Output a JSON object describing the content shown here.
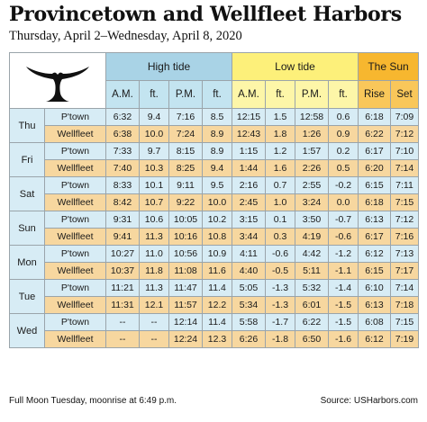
{
  "title": "Provincetown and Wellfleet Harbors",
  "subtitle": "Thursday, April 2–Wednesday, April 8, 2020",
  "logo_icon": "whale-tail-icon",
  "headers": {
    "high_tide": "High tide",
    "low_tide": "Low tide",
    "sun": "The Sun",
    "sub": [
      "A.M.",
      "ft.",
      "P.M.",
      "ft.",
      "A.M.",
      "ft.",
      "P.M.",
      "ft.",
      "Rise",
      "Set"
    ]
  },
  "colors": {
    "high_tide": "#a9d3e6",
    "low_tide": "#fdf07a",
    "sun": "#f7b72f",
    "ptown_row": "#d7ecf5",
    "wellfleet_row": "#f7d79f"
  },
  "days": [
    {
      "day": "Thu",
      "rows": [
        {
          "loc": "P'town",
          "values": [
            "6:32",
            "9.4",
            "7:16",
            "8.5",
            "12:15",
            "1.5",
            "12:58",
            "0.6",
            "6:18",
            "7:09"
          ]
        },
        {
          "loc": "Wellfleet",
          "values": [
            "6:38",
            "10.0",
            "7:24",
            "8.9",
            "12:43",
            "1.8",
            "1:26",
            "0.9",
            "6:22",
            "7:12"
          ]
        }
      ]
    },
    {
      "day": "Fri",
      "rows": [
        {
          "loc": "P'town",
          "values": [
            "7:33",
            "9.7",
            "8:15",
            "8.9",
            "1:15",
            "1.2",
            "1:57",
            "0.2",
            "6:17",
            "7:10"
          ]
        },
        {
          "loc": "Wellfleet",
          "values": [
            "7:40",
            "10.3",
            "8:25",
            "9.4",
            "1:44",
            "1.6",
            "2:26",
            "0.5",
            "6:20",
            "7:14"
          ]
        }
      ]
    },
    {
      "day": "Sat",
      "rows": [
        {
          "loc": "P'town",
          "values": [
            "8:33",
            "10.1",
            "9:11",
            "9.5",
            "2:16",
            "0.7",
            "2:55",
            "-0.2",
            "6:15",
            "7:11"
          ]
        },
        {
          "loc": "Wellfleet",
          "values": [
            "8:42",
            "10.7",
            "9:22",
            "10.0",
            "2:45",
            "1.0",
            "3:24",
            "0.0",
            "6:18",
            "7:15"
          ]
        }
      ]
    },
    {
      "day": "Sun",
      "rows": [
        {
          "loc": "P'town",
          "values": [
            "9:31",
            "10.6",
            "10:05",
            "10.2",
            "3:15",
            "0.1",
            "3:50",
            "-0.7",
            "6:13",
            "7:12"
          ]
        },
        {
          "loc": "Wellfleet",
          "values": [
            "9:41",
            "11.3",
            "10:16",
            "10.8",
            "3:44",
            "0.3",
            "4:19",
            "-0.6",
            "6:17",
            "7:16"
          ]
        }
      ]
    },
    {
      "day": "Mon",
      "rows": [
        {
          "loc": "P'town",
          "values": [
            "10:27",
            "11.0",
            "10:56",
            "10.9",
            "4:11",
            "-0.6",
            "4:42",
            "-1.2",
            "6:12",
            "7:13"
          ]
        },
        {
          "loc": "Wellfleet",
          "values": [
            "10:37",
            "11.8",
            "11:08",
            "11.6",
            "4:40",
            "-0.5",
            "5:11",
            "-1.1",
            "6:15",
            "7:17"
          ]
        }
      ]
    },
    {
      "day": "Tue",
      "rows": [
        {
          "loc": "P'town",
          "values": [
            "11:21",
            "11.3",
            "11:47",
            "11.4",
            "5:05",
            "-1.3",
            "5:32",
            "-1.4",
            "6:10",
            "7:14"
          ]
        },
        {
          "loc": "Wellfleet",
          "values": [
            "11:31",
            "12.1",
            "11:57",
            "12.2",
            "5:34",
            "-1.3",
            "6:01",
            "-1.5",
            "6:13",
            "7:18"
          ]
        }
      ]
    },
    {
      "day": "Wed",
      "rows": [
        {
          "loc": "P'town",
          "values": [
            "--",
            "--",
            "12:14",
            "11.4",
            "5:58",
            "-1.7",
            "6:22",
            "-1.5",
            "6:08",
            "7:15"
          ]
        },
        {
          "loc": "Wellfleet",
          "values": [
            "--",
            "--",
            "12:24",
            "12.3",
            "6:26",
            "-1.8",
            "6:50",
            "-1.6",
            "6:12",
            "7:19"
          ]
        }
      ]
    }
  ],
  "footer": {
    "left": "Full Moon Tuesday, moonrise at 6:49 p.m.",
    "right": "Source: USHarbors.com"
  }
}
